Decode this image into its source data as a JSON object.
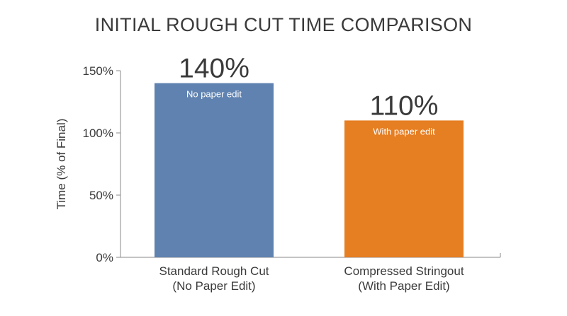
{
  "chart_data": {
    "type": "bar",
    "title": "INITIAL ROUGH CUT TIME COMPARISON",
    "ylabel": "Time (% of Final)",
    "xlabel": "",
    "ylim": [
      0,
      150
    ],
    "yticks": [
      "150%",
      "100%",
      "50%",
      "0%"
    ],
    "ytick_values": [
      150,
      100,
      50,
      0
    ],
    "grid": false,
    "legend": "none",
    "categories": [
      [
        "Standard Rough Cut",
        "(No Paper Edit)"
      ],
      [
        "Compressed Stringout",
        "(With Paper Edit)"
      ]
    ],
    "values": [
      140,
      110
    ],
    "value_labels": [
      "140%",
      "110%"
    ],
    "bar_annotations": [
      "No paper edit",
      "With paper edit"
    ],
    "colors": [
      "#5f82b0",
      "#e67e22"
    ]
  }
}
